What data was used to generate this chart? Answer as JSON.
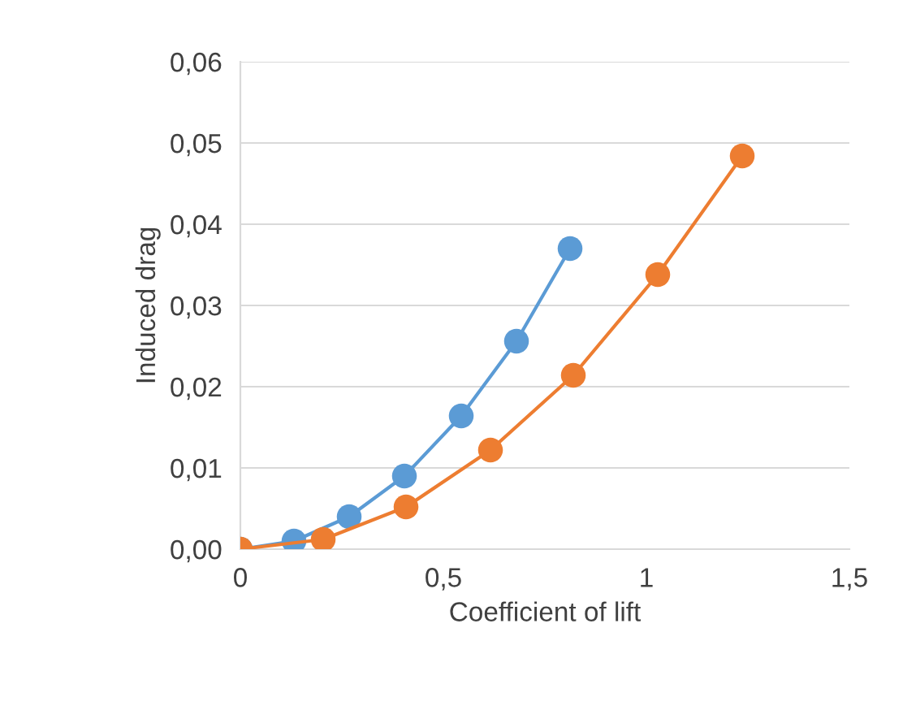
{
  "chart_data": {
    "type": "line",
    "xlabel": "Coefficient of lift",
    "ylabel": "Induced drag",
    "series": [
      {
        "color": "#5b9bd5",
        "x": [
          0,
          0.132,
          0.268,
          0.404,
          0.544,
          0.68,
          0.812
        ],
        "values": [
          0,
          0.001,
          0.004,
          0.009,
          0.0164,
          0.0256,
          0.037
        ]
      },
      {
        "color": "#ed7d31",
        "x": [
          0,
          0.204,
          0.408,
          0.616,
          0.82,
          1.028,
          1.236
        ],
        "values": [
          0,
          0.0012,
          0.0052,
          0.0122,
          0.0214,
          0.0338,
          0.0484
        ]
      }
    ],
    "xlim": [
      0,
      1.5
    ],
    "xticks": [
      0,
      {
        "value": 0.5,
        "label": "0,5"
      },
      1,
      {
        "value": 1.5,
        "label": "1,5"
      }
    ],
    "ylim": [
      0,
      0.06
    ],
    "yticks": [
      {
        "value": 0,
        "label": "0,00"
      },
      {
        "value": 0.01,
        "label": "0,01"
      },
      {
        "value": 0.02,
        "label": "0,02"
      },
      {
        "value": 0.03,
        "label": "0,03"
      },
      {
        "value": 0.04,
        "label": "0,04"
      },
      {
        "value": 0.05,
        "label": "0,05"
      },
      {
        "value": 0.06,
        "label": "0,06"
      }
    ],
    "grid": "y",
    "marker": "circle",
    "line_style": "solid"
  }
}
